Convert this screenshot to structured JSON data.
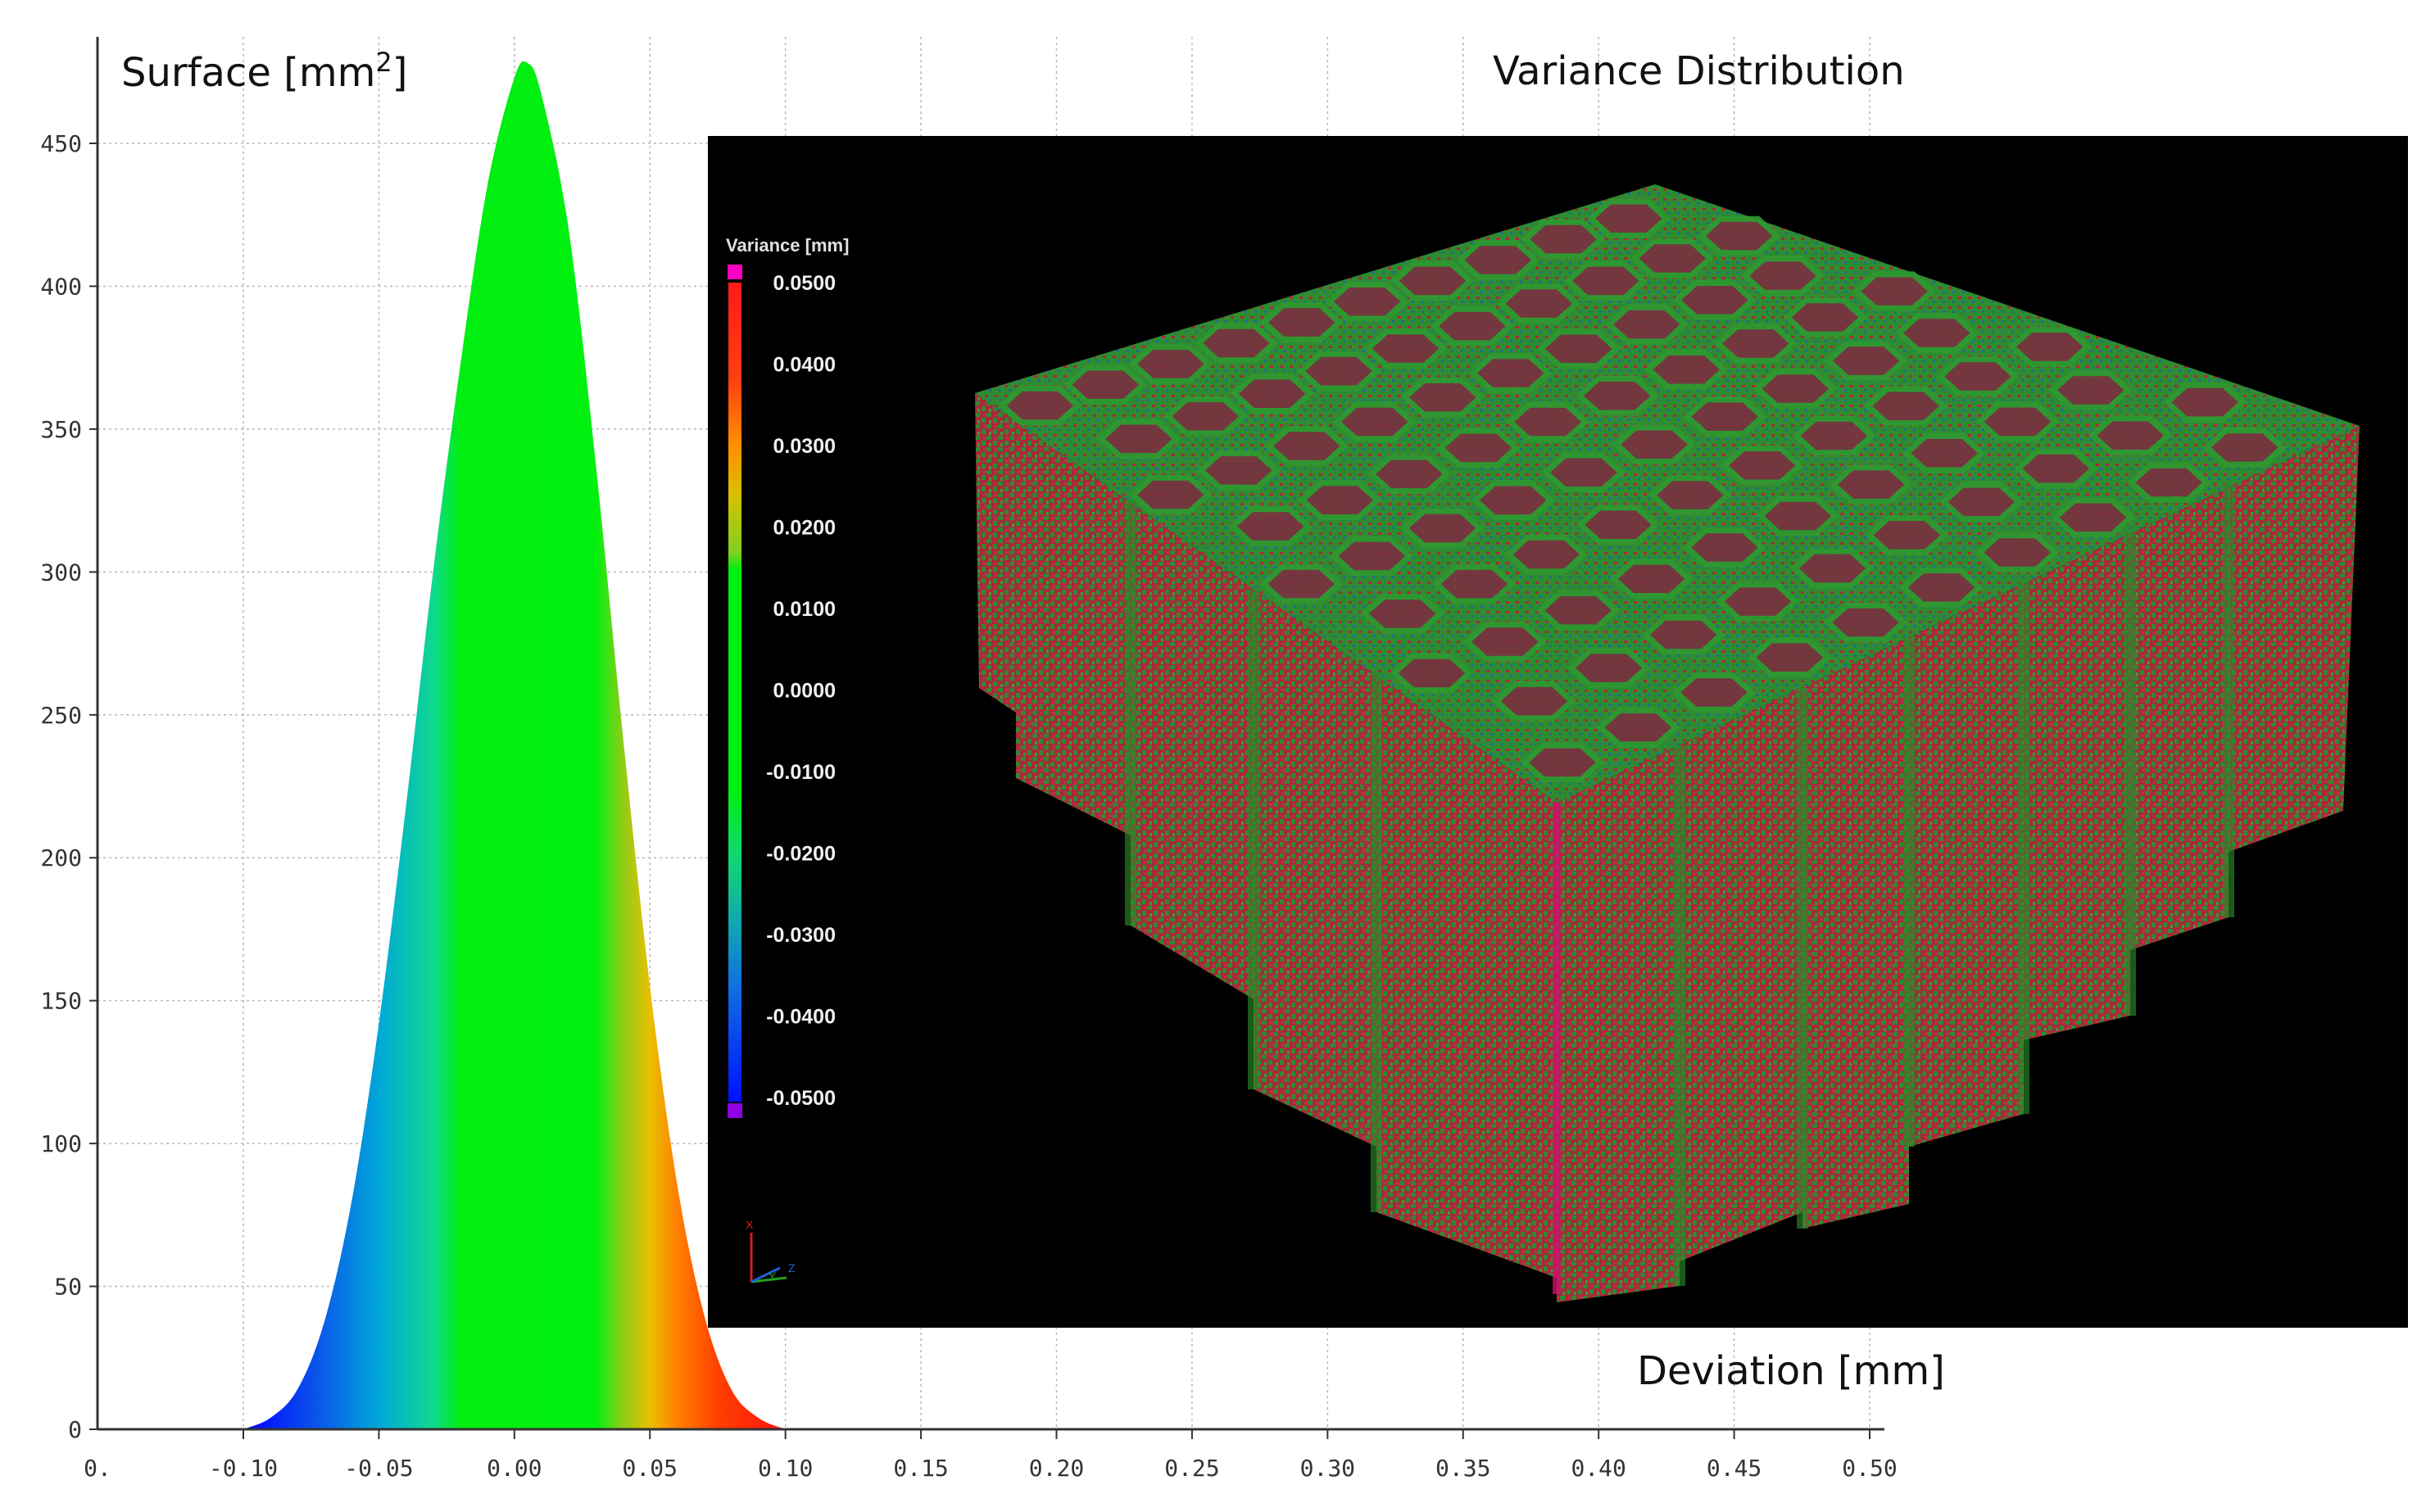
{
  "chart_data": {
    "type": "area",
    "title": "Variance Distribution",
    "ylabel": "Surface [mm",
    "ylabel_sup": "2",
    "ylabel_end": "]",
    "xlabel": "Deviation [mm]",
    "xlim": [
      -0.15,
      0.5
    ],
    "ylim": [
      0,
      480
    ],
    "x_ticks": [
      "0.",
      "-0.10",
      "-0.05",
      "0.00",
      "0.05",
      "0.10",
      "0.15",
      "0.20",
      "0.25",
      "0.30",
      "0.35",
      "0.40",
      "0.45",
      "0.50"
    ],
    "y_ticks": [
      "0",
      "50",
      "100",
      "150",
      "200",
      "250",
      "300",
      "350",
      "400",
      "450"
    ],
    "series": [
      {
        "name": "Surface",
        "x": [
          -0.1,
          -0.09,
          -0.08,
          -0.07,
          -0.06,
          -0.05,
          -0.04,
          -0.03,
          -0.02,
          -0.01,
          0.0,
          0.005,
          0.01,
          0.02,
          0.03,
          0.04,
          0.05,
          0.06,
          0.07,
          0.08,
          0.09,
          0.1
        ],
        "y": [
          0,
          4,
          14,
          38,
          80,
          142,
          218,
          300,
          372,
          435,
          473,
          478,
          467,
          420,
          338,
          243,
          155,
          86,
          40,
          14,
          4,
          0
        ]
      }
    ],
    "color_scale": [
      {
        "x": -0.1,
        "color": "#0000ff"
      },
      {
        "x": -0.07,
        "color": "#0a5fe8"
      },
      {
        "x": -0.05,
        "color": "#00a8d8"
      },
      {
        "x": -0.03,
        "color": "#10d890"
      },
      {
        "x": -0.02,
        "color": "#00ee10"
      },
      {
        "x": 0.03,
        "color": "#00f010"
      },
      {
        "x": 0.04,
        "color": "#90cc18"
      },
      {
        "x": 0.05,
        "color": "#e8c000"
      },
      {
        "x": 0.06,
        "color": "#ff8000"
      },
      {
        "x": 0.075,
        "color": "#ff4000"
      },
      {
        "x": 0.1,
        "color": "#ff1010"
      }
    ]
  },
  "inset": {
    "legend_title": "Variance [mm]",
    "legend_ticks": [
      "0.0500",
      "0.0400",
      "0.0300",
      "0.0200",
      "0.0100",
      "0.0000",
      "-0.0100",
      "-0.0200",
      "-0.0300",
      "-0.0400",
      "-0.0500"
    ],
    "axis_letters": [
      "X",
      "Y",
      "Z"
    ],
    "colors": {
      "background": "#000000",
      "top_magenta": "#ff00c0",
      "bottom_magenta": "#9000e0",
      "wall_red": "#b02838",
      "wall_green": "#2a8a2a",
      "rim_blue": "#2a6aa8"
    }
  }
}
